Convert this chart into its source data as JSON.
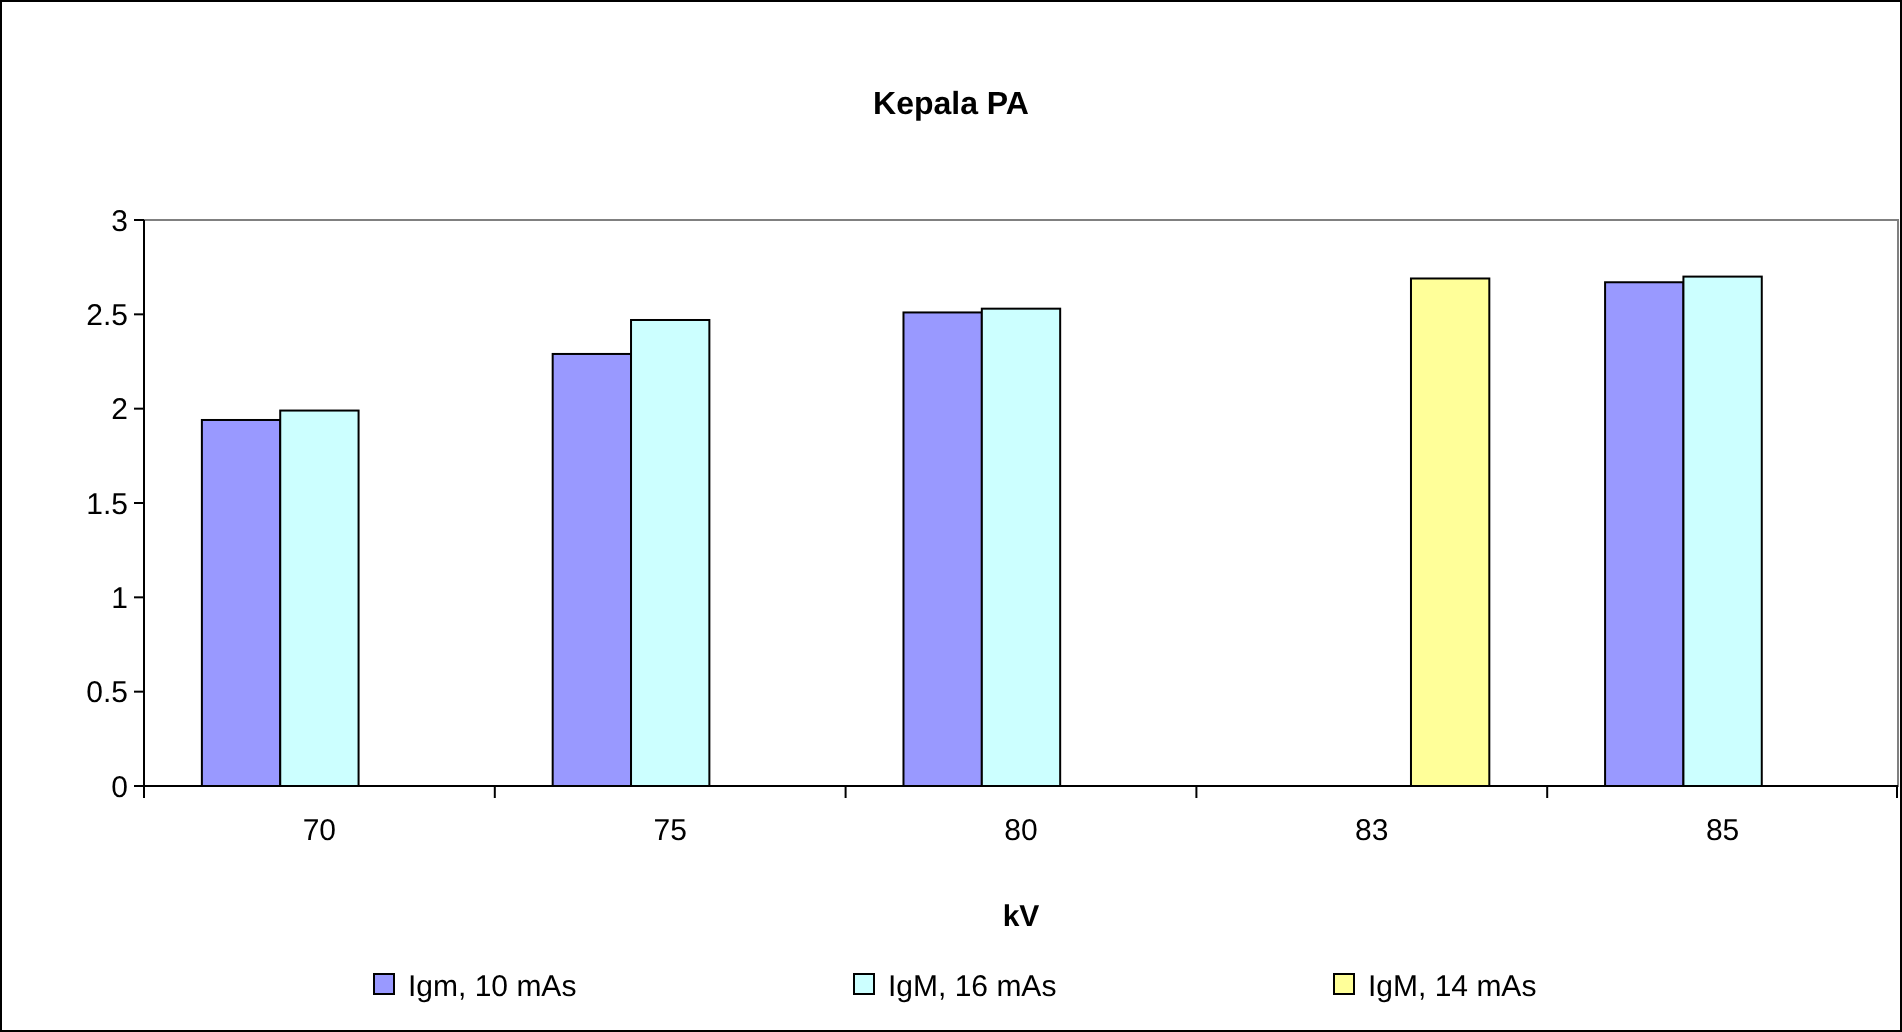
{
  "chart_data": {
    "type": "bar",
    "title": "Kepala PA",
    "xlabel": "kV",
    "categories": [
      "70",
      "75",
      "80",
      "83",
      "85"
    ],
    "series": [
      {
        "name": "Igm, 10 mAs",
        "color": "#9999ff",
        "values": [
          1.94,
          2.29,
          2.51,
          null,
          2.67
        ]
      },
      {
        "name": "IgM, 16 mAs",
        "color": "#ccffff",
        "values": [
          1.99,
          2.47,
          2.53,
          null,
          2.7
        ]
      },
      {
        "name": "IgM, 14 mAs",
        "color": "#ffff99",
        "values": [
          null,
          null,
          null,
          2.69,
          null
        ]
      }
    ],
    "ylim": [
      0,
      3
    ],
    "yticks": [
      0,
      0.5,
      1,
      1.5,
      2,
      2.5,
      3
    ],
    "grid": false,
    "legend": "bottom"
  }
}
